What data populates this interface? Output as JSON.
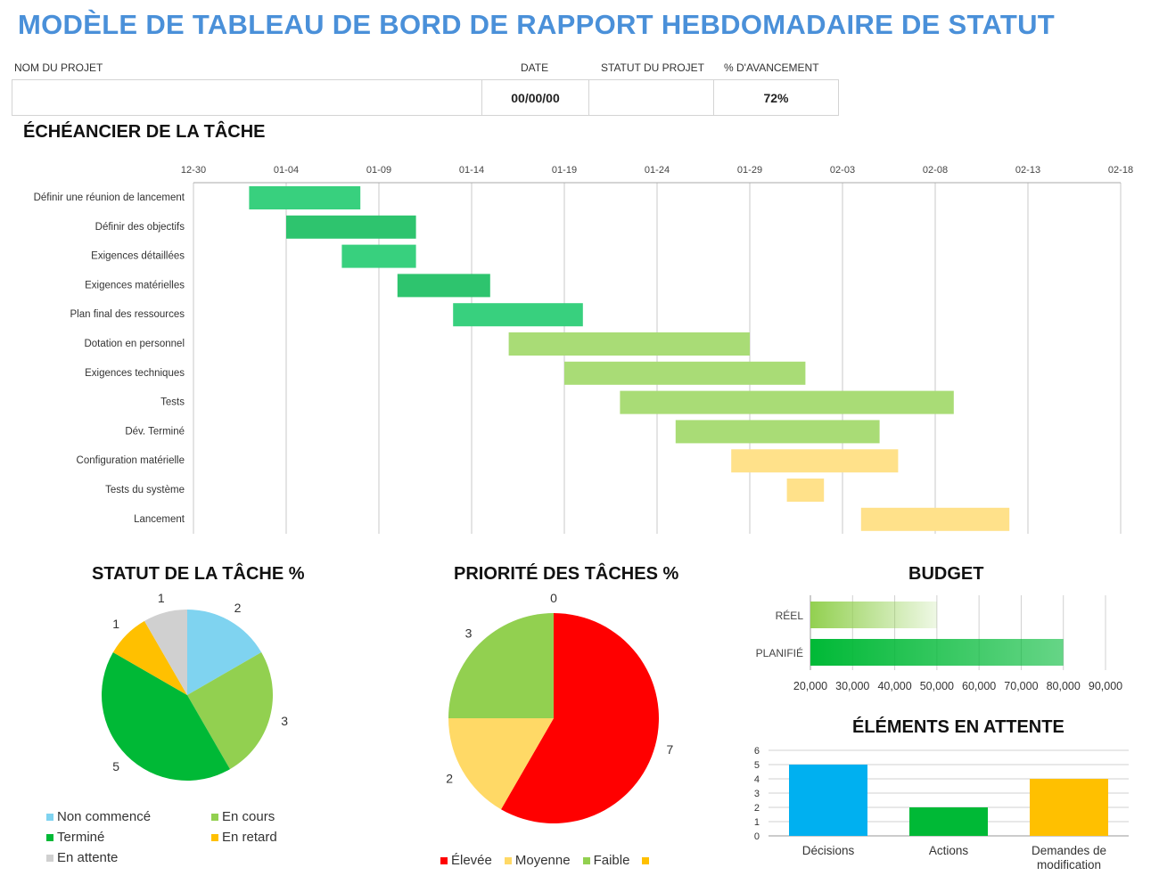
{
  "title": "MODÈLE DE TABLEAU DE BORD DE RAPPORT HEBDOMADAIRE DE STATUT",
  "header": {
    "project_name_label": "NOM DU PROJET",
    "date_label": "DATE",
    "status_label": "STATUT DU PROJET",
    "progress_label": "% D'AVANCEMENT",
    "project_name": "",
    "date": "00/00/00",
    "status": "",
    "progress": "72%"
  },
  "timeline": {
    "title": "ÉCHÉANCIER DE LA TÂCHE"
  },
  "status_title": "STATUT DE LA TÂCHE %",
  "priority_title": "PRIORITÉ DES TÂCHES %",
  "budget_title": "BUDGET",
  "pending_title": "ÉLÉMENTS EN ATTENTE",
  "chart_data": [
    {
      "type": "bar",
      "subtype": "gantt",
      "title": "ÉCHÉANCIER DE LA TÂCHE",
      "xlim": [
        "12-30",
        "02-18"
      ],
      "ticks": [
        "12-30",
        "01-04",
        "01-09",
        "01-14",
        "01-19",
        "01-24",
        "01-29",
        "02-03",
        "02-08",
        "02-13",
        "02-18"
      ],
      "grid": true,
      "tasks": [
        {
          "name": "Définir une réunion de lancement",
          "start": "01-02",
          "duration": 6,
          "color": "#38d07e"
        },
        {
          "name": "Définir des objectifs",
          "start": "01-04",
          "duration": 7,
          "color": "#2ec46e"
        },
        {
          "name": "Exigences détaillées",
          "start": "01-07",
          "duration": 4,
          "color": "#38d07e"
        },
        {
          "name": "Exigences matérielles",
          "start": "01-10",
          "duration": 5,
          "color": "#2ec46e"
        },
        {
          "name": "Plan final des ressources",
          "start": "01-13",
          "duration": 7,
          "color": "#38d07e"
        },
        {
          "name": "Dotation en personnel",
          "start": "01-16",
          "duration": 13,
          "color": "#a9dc76"
        },
        {
          "name": "Exigences techniques",
          "start": "01-19",
          "duration": 13,
          "color": "#a9dc76"
        },
        {
          "name": "Tests",
          "start": "01-22",
          "duration": 18,
          "color": "#a9dc76"
        },
        {
          "name": "Dév. Terminé",
          "start": "01-25",
          "duration": 11,
          "color": "#a9dc76"
        },
        {
          "name": "Configuration matérielle",
          "start": "01-28",
          "duration": 9,
          "color": "#ffe18a"
        },
        {
          "name": "Tests du système",
          "start": "01-31",
          "duration": 2,
          "color": "#ffe18a"
        },
        {
          "name": "Lancement",
          "start": "02-04",
          "duration": 8,
          "color": "#ffe18a"
        }
      ]
    },
    {
      "type": "pie",
      "title": "STATUT DE LA TÂCHE %",
      "legend": "bottom",
      "slices": [
        {
          "label": "Non commencé",
          "value": 2,
          "color": "#7fd3f0"
        },
        {
          "label": "En cours",
          "value": 3,
          "color": "#92d050"
        },
        {
          "label": "Terminé",
          "value": 5,
          "color": "#00b936"
        },
        {
          "label": "En retard",
          "value": 1,
          "color": "#ffc000"
        },
        {
          "label": "En attente",
          "value": 1,
          "color": "#d0d0d0"
        }
      ]
    },
    {
      "type": "pie",
      "title": "PRIORITÉ DES TÂCHES %",
      "legend": "bottom",
      "slices": [
        {
          "label": "Élevée",
          "value": 7,
          "color": "#ff0000"
        },
        {
          "label": "Moyenne",
          "value": 2,
          "color": "#ffd966"
        },
        {
          "label": "Faible",
          "value": 3,
          "color": "#92d050"
        },
        {
          "label": "",
          "value": 0,
          "color": "#ffc000"
        }
      ]
    },
    {
      "type": "bar",
      "orientation": "horizontal",
      "title": "BUDGET",
      "categories": [
        "RÉEL",
        "PLANIFIÉ"
      ],
      "values": [
        50000,
        80000
      ],
      "xlim": [
        20000,
        90000
      ],
      "ticks": [
        "20,000",
        "30,000",
        "40,000",
        "50,000",
        "60,000",
        "70,000",
        "80,000",
        "90,000"
      ],
      "grid": true
    },
    {
      "type": "bar",
      "title": "ÉLÉMENTS EN ATTENTE",
      "categories": [
        "Décisions",
        "Actions",
        "Demandes de modification"
      ],
      "values": [
        5,
        2,
        4
      ],
      "colors": [
        "#00b0f0",
        "#00b936",
        "#ffc000"
      ],
      "ylim": [
        0,
        6
      ],
      "grid": true
    }
  ]
}
